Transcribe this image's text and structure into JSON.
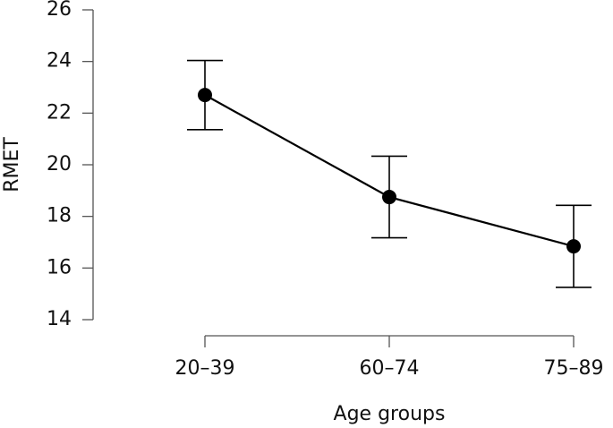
{
  "chart_data": {
    "type": "line",
    "xlabel": "Age groups",
    "ylabel": "RMET",
    "categories": [
      "20–39",
      "60–74",
      "75–89"
    ],
    "values": [
      22.7,
      18.75,
      16.84
    ],
    "errors": [
      1.34,
      1.58,
      1.59
    ],
    "color": "#000000",
    "ylim": [
      14,
      26
    ],
    "yticks": [
      14,
      16,
      18,
      20,
      22,
      24,
      26
    ]
  }
}
